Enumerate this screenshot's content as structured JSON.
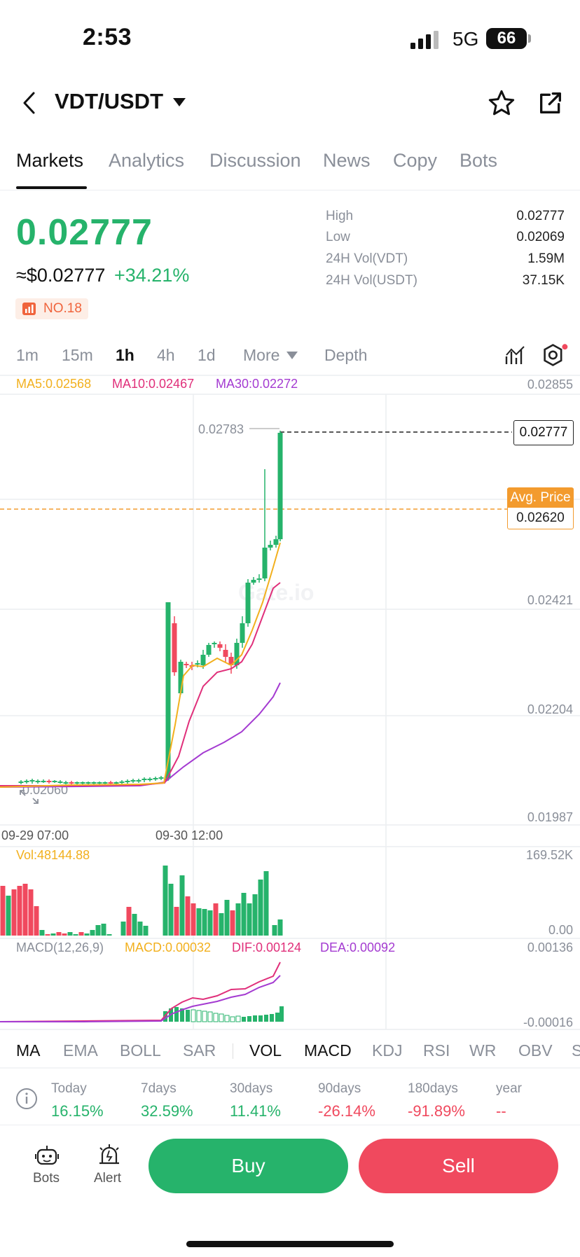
{
  "status_bar": {
    "time": "2:53",
    "network": "5G",
    "battery": "66"
  },
  "header": {
    "pair": "VDT/USDT"
  },
  "tabs": [
    "Markets",
    "Analytics",
    "Discussion",
    "News",
    "Copy",
    "Bots"
  ],
  "ticker": {
    "price": "0.02777",
    "usd_price": "≈$0.02777",
    "change": "+34.21%",
    "rank": "NO.18",
    "stats": [
      {
        "label": "High",
        "value": "0.02777"
      },
      {
        "label": "Low",
        "value": "0.02069"
      },
      {
        "label": "24H Vol(VDT)",
        "value": "1.59M"
      },
      {
        "label": "24H Vol(USDT)",
        "value": "37.15K"
      }
    ]
  },
  "intervals": [
    "1m",
    "15m",
    "1h",
    "4h",
    "1d",
    "More",
    "Depth"
  ],
  "chart": {
    "ma5": "MA5:0.02568",
    "ma10": "MA10:0.02467",
    "ma30": "MA30:0.02272",
    "y_ticks": [
      "0.02855",
      "0.02421",
      "0.02204",
      "0.01987"
    ],
    "high_label": "0.02783",
    "low_label": "0.02060",
    "last_price": "0.02777",
    "avg_label": "Avg. Price",
    "avg_price": "0.02620",
    "x_ticks": [
      "09-29 07:00",
      "09-30 12:00"
    ],
    "vol_label": "Vol:48144.88",
    "vol_ticks": [
      "169.52K",
      "0.00"
    ],
    "macd_label": "MACD(12,26,9)",
    "macd_value": "MACD:0.00032",
    "dif": "DIF:0.00124",
    "dea": "DEA:0.00092",
    "macd_ticks": [
      "0.00136",
      "-0.00016"
    ],
    "watermark": "Gate.io",
    "colors": {
      "up": "#26b36b",
      "down": "#f0495e",
      "ma5": "#f2b01e",
      "ma10": "#e02f7a",
      "ma30": "#a43bd1"
    }
  },
  "indicators": [
    "MA",
    "EMA",
    "BOLL",
    "SAR",
    "VOL",
    "MACD",
    "KDJ",
    "RSI",
    "WR",
    "OBV",
    "S"
  ],
  "returns": [
    {
      "label": "Today",
      "value": "16.15%",
      "dir": "up"
    },
    {
      "label": "7days",
      "value": "32.59%",
      "dir": "up"
    },
    {
      "label": "30days",
      "value": "11.41%",
      "dir": "up"
    },
    {
      "label": "90days",
      "value": "-26.14%",
      "dir": "down"
    },
    {
      "label": "180days",
      "value": "-91.89%",
      "dir": "down"
    },
    {
      "label": "year",
      "value": "--",
      "dir": "down"
    }
  ],
  "bottom": {
    "bots": "Bots",
    "alert": "Alert",
    "buy": "Buy",
    "sell": "Sell"
  }
}
